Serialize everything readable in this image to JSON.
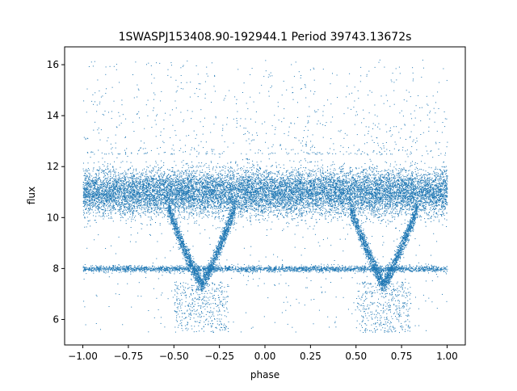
{
  "chart_data": {
    "type": "scatter",
    "title": "1SWASPJ153408.90-192944.1 Period 39743.13672s",
    "xlabel": "phase",
    "ylabel": "flux",
    "xlim": [
      -1.1,
      1.1
    ],
    "ylim": [
      5.0,
      16.7
    ],
    "xticks": [
      -1.0,
      -0.75,
      -0.5,
      -0.25,
      0.0,
      0.25,
      0.5,
      0.75,
      1.0
    ],
    "xtick_labels": [
      "−1.00",
      "−0.75",
      "−0.50",
      "−0.25",
      "0.00",
      "0.25",
      "0.50",
      "0.75",
      "1.00"
    ],
    "yticks": [
      6,
      8,
      10,
      12,
      14,
      16
    ],
    "ytick_labels": [
      "6",
      "8",
      "10",
      "12",
      "14",
      "16"
    ],
    "grid": false,
    "legend": false,
    "marker_color": "#1f77b4",
    "point_count_approx": 200000,
    "data_range": {
      "x": [
        -1.0,
        1.0
      ],
      "y": [
        5.5,
        16.2
      ]
    },
    "structure": {
      "main_band": {
        "y_center": 11.0,
        "y_spread": [
          9.8,
          12.3
        ],
        "x_range": [
          -1.0,
          1.0
        ]
      },
      "secondary_band": {
        "y_center": 8.0,
        "y_spread": [
          7.8,
          8.2
        ],
        "x_range": [
          -1.0,
          1.0
        ]
      },
      "dips": [
        {
          "x_center": -0.35,
          "x_start": -0.55,
          "x_end": -0.18,
          "y_min": 7.4
        },
        {
          "x_center": 0.65,
          "x_start": 0.45,
          "x_end": 0.82,
          "y_min": 7.4
        }
      ],
      "low_scatter": [
        {
          "x_range": [
            -0.5,
            -0.2
          ],
          "y_range": [
            5.5,
            7.5
          ]
        },
        {
          "x_range": [
            0.5,
            0.8
          ],
          "y_range": [
            5.5,
            7.5
          ]
        }
      ],
      "high_outliers": {
        "y_range": [
          12.5,
          16.2
        ],
        "x_range": [
          -1.0,
          1.0
        ]
      }
    }
  }
}
